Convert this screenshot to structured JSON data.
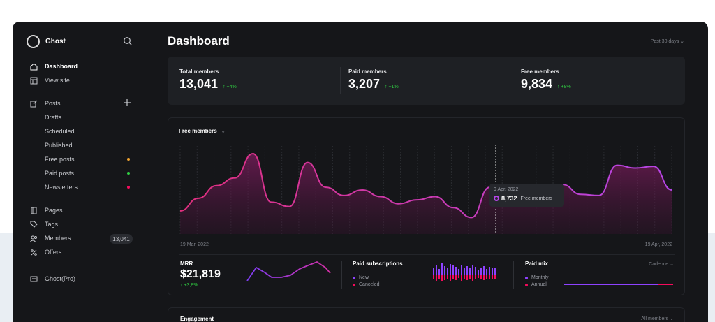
{
  "sidebar": {
    "brand": "Ghost",
    "nav": [
      {
        "label": "Dashboard",
        "icon": "home-icon"
      },
      {
        "label": "View site",
        "icon": "layout-icon"
      }
    ],
    "posts": {
      "label": "Posts",
      "icon": "edit-icon"
    },
    "post_items": [
      {
        "label": "Drafts"
      },
      {
        "label": "Scheduled"
      },
      {
        "label": "Published"
      },
      {
        "label": "Free posts",
        "dot": "#f1a32f"
      },
      {
        "label": "Paid posts",
        "dot": "#30cf43"
      },
      {
        "label": "Newsletters",
        "dot": "#f50b5c"
      }
    ],
    "more": [
      {
        "label": "Pages",
        "icon": "pages-icon"
      },
      {
        "label": "Tags",
        "icon": "tag-icon"
      },
      {
        "label": "Members",
        "icon": "members-icon",
        "badge": "13,041"
      },
      {
        "label": "Offers",
        "icon": "percent-icon"
      }
    ],
    "footer": {
      "label": "Ghost(Pro)",
      "icon": "billing-icon"
    }
  },
  "header": {
    "title": "Dashboard",
    "range": "Past 30 days ⌄"
  },
  "stats": [
    {
      "label": "Total members",
      "value": "13,041",
      "change": "↑ +4%"
    },
    {
      "label": "Paid members",
      "value": "3,207",
      "change": "↑ +1%"
    },
    {
      "label": "Free members",
      "value": "9,834",
      "change": "↑ +8%"
    }
  ],
  "chart": {
    "title": "Free members",
    "chevron": "⌄",
    "date_start": "19 Mar, 2022",
    "date_end": "19 Apr, 2022",
    "tooltip": {
      "date": "9 Apr, 2022",
      "value": "8,732",
      "label": "Free members"
    }
  },
  "mrr": {
    "label": "MRR",
    "value": "$21,819",
    "change": "↑ +3,8%"
  },
  "subscriptions": {
    "label": "Paid subscriptions",
    "legend_new": "New",
    "legend_canceled": "Canceled"
  },
  "paid_mix": {
    "label": "Paid mix",
    "cadence": "Cadence ⌄",
    "legend_monthly": "Monthly",
    "legend_annual": "Annual"
  },
  "engagement": {
    "title": "Engagement",
    "filter": "All members ⌄"
  },
  "colors": {
    "accent": "#d12fa3",
    "purple": "#8e42ff",
    "red": "#f50b5c",
    "green": "#30cf43"
  },
  "chart_data": {
    "type": "area",
    "series": [
      {
        "values": [
          6820,
          7050,
          7280,
          7420,
          7860,
          6980,
          6900,
          7700,
          7250,
          7100,
          7200,
          7080,
          6950,
          7020,
          7080,
          6880,
          6700,
          7250,
          6980,
          7000,
          7080,
          7300,
          7120,
          7100,
          7650,
          7600,
          7630,
          7200
        ]
      }
    ]
  }
}
